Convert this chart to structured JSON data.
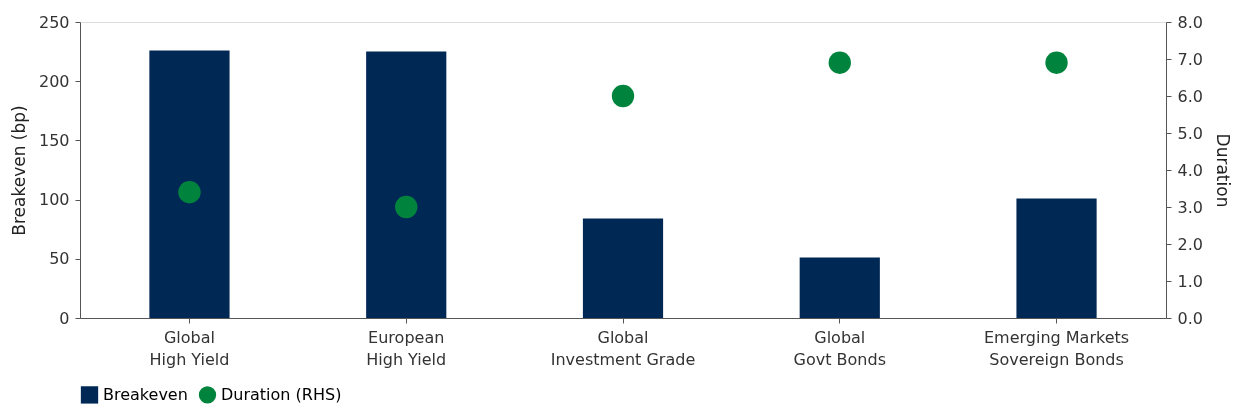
{
  "chart_data": {
    "type": "bar",
    "ylabel": "Breakeven (bp)",
    "y2label": "Duration",
    "categories": [
      "Global\nHigh Yield",
      "European\nHigh Yield",
      "Global\nInvestment Grade",
      "Global\nGovt Bonds",
      "Emerging Markets\nSovereign Bonds"
    ],
    "series": [
      {
        "name": "Breakeven",
        "color": "#002855",
        "values": [
          226,
          225,
          84,
          51,
          101
        ]
      },
      {
        "name": "Duration (RHS)",
        "type": "scatter",
        "axis": "y2",
        "marker": "circle",
        "color": "#00843d",
        "values": [
          3.4,
          3.0,
          6.0,
          6.9,
          6.9
        ]
      }
    ],
    "ylim": [
      0,
      250
    ],
    "yticks": [
      0,
      50,
      100,
      150,
      200,
      250
    ],
    "y2lim": [
      0,
      8
    ],
    "y2ticks": [
      {
        "value": 0,
        "label": "0.0"
      },
      {
        "value": 1,
        "label": "1.0"
      },
      {
        "value": 2,
        "label": "2.0"
      },
      {
        "value": 3,
        "label": "3.0"
      },
      {
        "value": 4,
        "label": "4.0"
      },
      {
        "value": 5,
        "label": "5.0"
      },
      {
        "value": 6,
        "label": "6.0"
      },
      {
        "value": 7,
        "label": "7.0"
      },
      {
        "value": 8,
        "label": "8.0"
      }
    ],
    "grid": false,
    "legend": "bottom"
  }
}
